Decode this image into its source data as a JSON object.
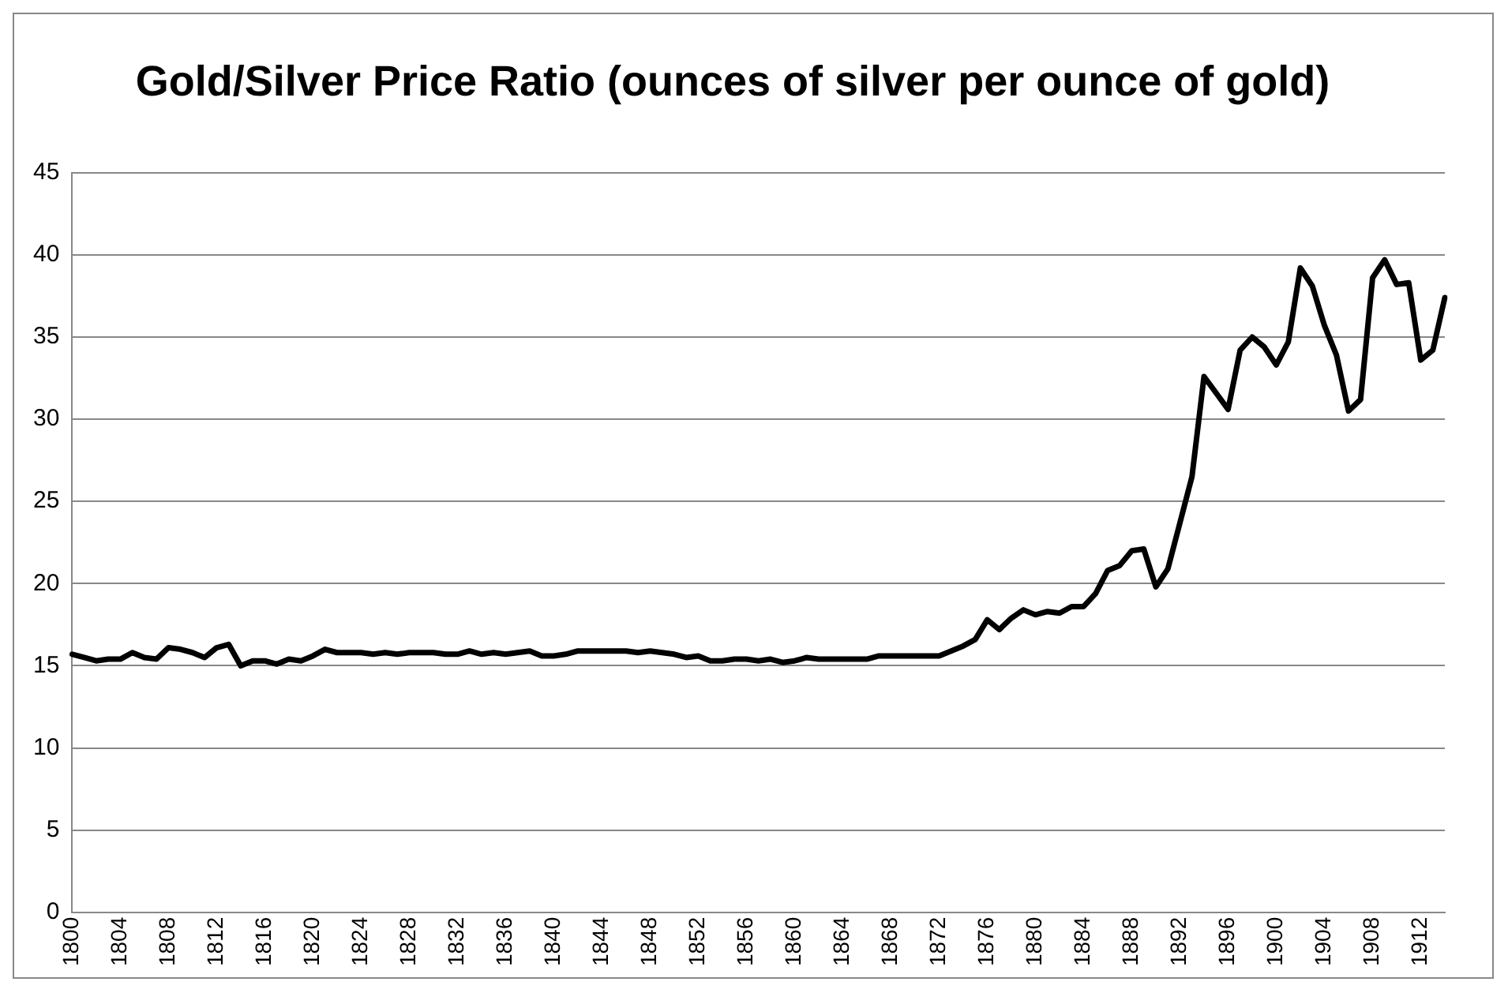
{
  "chart_data": {
    "type": "line",
    "title": "Gold/Silver Price Ratio (ounces of silver per ounce of gold)",
    "categories": [
      "1800",
      null,
      null,
      null,
      "1804",
      null,
      null,
      null,
      "1808",
      null,
      null,
      null,
      "1812",
      null,
      null,
      null,
      "1816",
      null,
      null,
      null,
      "1820",
      null,
      null,
      null,
      "1824",
      null,
      null,
      null,
      "1828",
      null,
      null,
      null,
      "1832",
      null,
      null,
      null,
      "1836",
      null,
      null,
      null,
      "1840",
      null,
      null,
      null,
      "1844",
      null,
      null,
      null,
      "1848",
      null,
      null,
      null,
      "1852",
      null,
      null,
      null,
      "1856",
      null,
      null,
      null,
      "1860",
      null,
      null,
      null,
      "1864",
      null,
      null,
      null,
      "1868",
      null,
      null,
      null,
      "1872",
      null,
      null,
      null,
      "1876",
      null,
      null,
      null,
      "1880",
      null,
      null,
      null,
      "1884",
      null,
      null,
      null,
      "1888",
      null,
      null,
      null,
      "1892",
      null,
      null,
      null,
      "1896",
      null,
      null,
      null,
      "1900",
      null,
      null,
      null,
      "1904",
      null,
      null,
      null,
      "1908",
      null,
      null,
      null,
      "1912",
      null,
      null
    ],
    "series": [
      {
        "color": "#000000",
        "values": [
          15.7,
          15.5,
          15.3,
          15.4,
          15.4,
          15.8,
          15.5,
          15.4,
          16.1,
          16.0,
          15.8,
          15.5,
          16.1,
          16.3,
          15.0,
          15.3,
          15.3,
          15.1,
          15.4,
          15.3,
          15.6,
          16.0,
          15.8,
          15.8,
          15.8,
          15.7,
          15.8,
          15.7,
          15.8,
          15.8,
          15.8,
          15.7,
          15.7,
          15.9,
          15.7,
          15.8,
          15.7,
          15.8,
          15.9,
          15.6,
          15.6,
          15.7,
          15.9,
          15.9,
          15.9,
          15.9,
          15.9,
          15.8,
          15.9,
          15.8,
          15.7,
          15.5,
          15.6,
          15.3,
          15.3,
          15.4,
          15.4,
          15.3,
          15.4,
          15.2,
          15.3,
          15.5,
          15.4,
          15.4,
          15.4,
          15.4,
          15.4,
          15.6,
          15.6,
          15.6,
          15.6,
          15.6,
          15.6,
          15.9,
          16.2,
          16.6,
          17.8,
          17.2,
          17.9,
          18.4,
          18.1,
          18.3,
          18.2,
          18.6,
          18.6,
          19.4,
          20.8,
          21.1,
          22.0,
          22.1,
          19.8,
          20.9,
          23.7,
          26.5,
          32.6,
          31.6,
          30.6,
          34.2,
          35.0,
          34.4,
          33.3,
          34.7,
          39.2,
          38.1,
          35.7,
          33.9,
          30.5,
          31.2,
          38.6,
          39.7,
          38.2,
          38.3,
          33.6,
          34.2,
          37.4
        ]
      }
    ],
    "ylim": [
      0,
      45
    ],
    "yticks": [
      0,
      5,
      10,
      15,
      20,
      25,
      30,
      35,
      40,
      45
    ],
    "grid": "y",
    "legend": false,
    "marker": "none",
    "line_style": "solid"
  }
}
